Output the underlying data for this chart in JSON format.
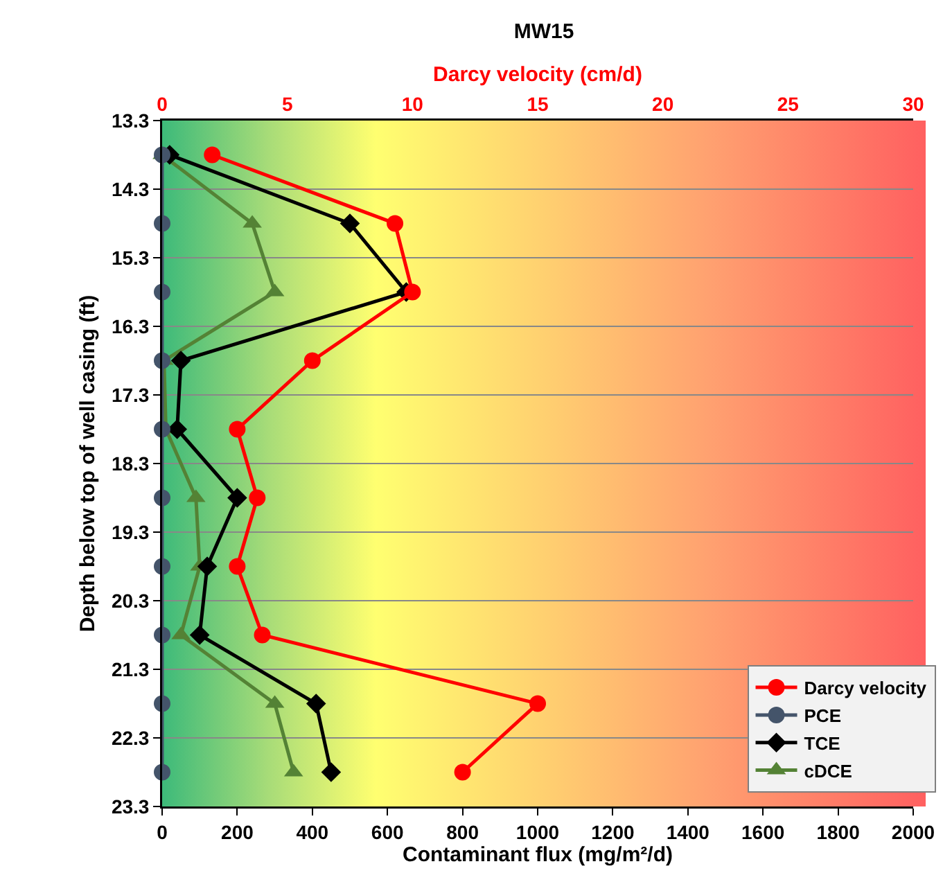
{
  "chart_data": {
    "type": "line",
    "orientation": "horizontal",
    "title": "MW15",
    "xlabel": "Contaminant flux (mg/m²/d)",
    "x2label": "Darcy velocity (cm/d)",
    "ylabel": "Depth below top of well casing (ft)",
    "x": [
      13.8,
      14.8,
      15.8,
      16.8,
      17.8,
      18.8,
      19.8,
      20.8,
      21.8,
      22.8
    ],
    "xlim": [
      0,
      2000
    ],
    "xticks": [
      0,
      200,
      400,
      600,
      800,
      1000,
      1200,
      1400,
      1600,
      1800,
      2000
    ],
    "x2lim": [
      0,
      30
    ],
    "x2ticks": [
      0,
      5,
      10,
      15,
      20,
      25,
      30
    ],
    "ylim": [
      23.3,
      13.3
    ],
    "yticks": [
      13.3,
      14.3,
      15.3,
      16.3,
      17.3,
      18.3,
      19.3,
      20.3,
      21.3,
      22.3,
      23.3
    ],
    "grid": "y",
    "legend": "bottom right",
    "series": [
      {
        "name": "Darcy velocity",
        "color": "#ff0000",
        "axis": "x2",
        "marker": "circle",
        "values": [
          2,
          9.3,
          10,
          6,
          3,
          3.8,
          3,
          4,
          15,
          12
        ]
      },
      {
        "name": "PCE",
        "color": "#44546a",
        "marker": "circle",
        "values": [
          0,
          0,
          0,
          0,
          0,
          0,
          0,
          0,
          0,
          0
        ]
      },
      {
        "name": "TCE",
        "color": "#000000",
        "marker": "diamond",
        "values": [
          20,
          500,
          650,
          50,
          40,
          200,
          120,
          100,
          410,
          450
        ]
      },
      {
        "name": "cDCE",
        "color": "#548235",
        "marker": "triangle",
        "values": [
          0,
          240,
          300,
          5,
          10,
          90,
          100,
          50,
          300,
          350
        ]
      }
    ]
  }
}
